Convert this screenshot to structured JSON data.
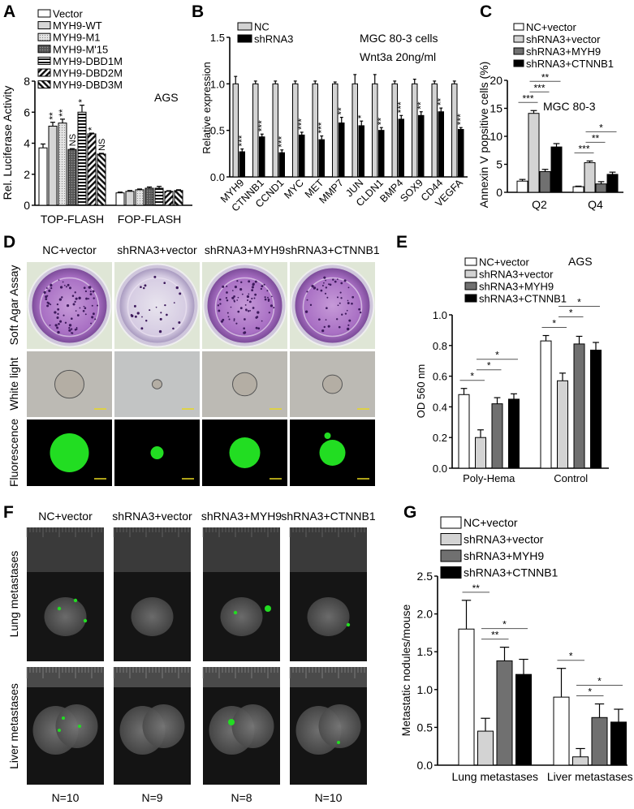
{
  "panel_letters": {
    "A": "A",
    "B": "B",
    "C": "C",
    "D": "D",
    "E": "E",
    "F": "F",
    "G": "G"
  },
  "chart_data": [
    {
      "panel": "A",
      "type": "bar",
      "categories": [
        "TOP-FLASH",
        "FOP-FLASH"
      ],
      "ylabel": "Rel. Luciferase Activity",
      "xlabel": "",
      "ylim": [
        0,
        8
      ],
      "yticks": [
        "0",
        "2",
        "4",
        "6",
        "8"
      ],
      "annotations": [
        "AGS"
      ],
      "legend": "top-left",
      "series": [
        {
          "name": "Vector",
          "fill": "#ffffff",
          "pattern": "none",
          "values": [
            3.7,
            0.8
          ],
          "errors": [
            0.25,
            0.05
          ],
          "marks": [
            "",
            ""
          ]
        },
        {
          "name": "MYH9-WT",
          "fill": "#d6d6d6",
          "pattern": "solid",
          "values": [
            5.1,
            0.9
          ],
          "errors": [
            0.25,
            0.05
          ],
          "marks": [
            "**",
            ""
          ]
        },
        {
          "name": "MYH9-M1",
          "fill": "#e0e0e0",
          "pattern": "dots",
          "values": [
            5.3,
            1.0
          ],
          "errors": [
            0.25,
            0.05
          ],
          "marks": [
            "**",
            ""
          ]
        },
        {
          "name": "MYH9-M'15",
          "fill": "#555555",
          "pattern": "dark-dots",
          "values": [
            3.6,
            1.1
          ],
          "errors": [
            0.05,
            0.08
          ],
          "marks": [
            "NS",
            ""
          ]
        },
        {
          "name": "MYH9-DBD1M",
          "fill": "#ffffff",
          "pattern": "horizontal-stripes",
          "values": [
            6.0,
            1.1
          ],
          "errors": [
            0.45,
            0.12
          ],
          "marks": [
            "*",
            ""
          ]
        },
        {
          "name": "MYH9-DBD2M",
          "fill": "#ffffff",
          "pattern": "back-diagonal",
          "values": [
            4.6,
            0.9
          ],
          "errors": [
            0.05,
            0.04
          ],
          "marks": [
            "*",
            ""
          ]
        },
        {
          "name": "MYH9-DBD3M",
          "fill": "#ffffff",
          "pattern": "forward-diagonal",
          "values": [
            3.3,
            0.95
          ],
          "errors": [
            0.05,
            0.05
          ],
          "marks": [
            "NS",
            ""
          ]
        }
      ],
      "comparisons": []
    },
    {
      "panel": "B",
      "type": "bar",
      "categories": [
        "MYH9",
        "CTNNB1",
        "CCND1",
        "MYC",
        "MET",
        "MMP7",
        "JUN",
        "CLDN1",
        "BMP4",
        "SOX9",
        "CD44",
        "VEGFA"
      ],
      "ylabel": "Relative expression",
      "xlabel": "",
      "ylim": [
        0,
        1.5
      ],
      "yticks": [
        "0.0",
        "0.5",
        "1.0",
        "1.5"
      ],
      "annotations": [
        "MGC 80-3 cells",
        "Wnt3a 20ng/ml"
      ],
      "legend": "top-left",
      "series": [
        {
          "name": "NC",
          "fill": "#d3d3d3",
          "pattern": "solid",
          "values": [
            1,
            1,
            1,
            1,
            1,
            1,
            1,
            1,
            1,
            1,
            1,
            1
          ],
          "errors": [
            0.08,
            0.03,
            0.03,
            0.03,
            0.03,
            0.02,
            0.1,
            0.1,
            0.03,
            0.05,
            0.03,
            0.03
          ],
          "marks": [
            "",
            "",
            "",
            "",
            "",
            "",
            "",
            "",
            "",
            "",
            "",
            ""
          ]
        },
        {
          "name": "shRNA3",
          "fill": "#000000",
          "pattern": "solid",
          "values": [
            0.27,
            0.43,
            0.26,
            0.45,
            0.4,
            0.58,
            0.55,
            0.5,
            0.62,
            0.66,
            0.7,
            0.51
          ],
          "errors": [
            0.03,
            0.03,
            0.03,
            0.03,
            0.04,
            0.06,
            0.05,
            0.03,
            0.04,
            0.04,
            0.04,
            0.02
          ],
          "marks": [
            "***",
            "***",
            "***",
            "***",
            "***",
            "**",
            "*",
            "**",
            "***",
            "**",
            "**",
            "***"
          ]
        }
      ],
      "comparisons": []
    },
    {
      "panel": "C",
      "type": "bar",
      "categories": [
        "Q2",
        "Q4"
      ],
      "ylabel": "Annexin V popsitive cells (%)",
      "xlabel": "",
      "ylim": [
        0,
        20
      ],
      "yticks": [
        "0",
        "5",
        "10",
        "15",
        "20"
      ],
      "annotations": [
        "MGC 80-3"
      ],
      "legend": "top",
      "series": [
        {
          "name": "NC+vector",
          "fill": "#ffffff",
          "pattern": "none",
          "values": [
            2.0,
            1.0
          ],
          "errors": [
            0.3,
            0.1
          ],
          "marks": [
            "",
            ""
          ]
        },
        {
          "name": "shRNA3+vector",
          "fill": "#d3d3d3",
          "pattern": "solid",
          "values": [
            14.1,
            5.3
          ],
          "errors": [
            0.5,
            0.3
          ],
          "marks": [
            "",
            ""
          ]
        },
        {
          "name": "shRNA3+MYH9",
          "fill": "#707070",
          "pattern": "solid",
          "values": [
            3.7,
            1.5
          ],
          "errors": [
            0.4,
            0.4
          ],
          "marks": [
            "",
            ""
          ]
        },
        {
          "name": "shRNA3+CTNNB1",
          "fill": "#000000",
          "pattern": "solid",
          "values": [
            8.1,
            3.2
          ],
          "errors": [
            0.6,
            0.4
          ],
          "marks": [
            "",
            ""
          ]
        }
      ],
      "comparisons": [
        {
          "category": 0,
          "from": 0,
          "to": 1,
          "label": "***"
        },
        {
          "category": 0,
          "from": 1,
          "to": 2,
          "label": "***"
        },
        {
          "category": 0,
          "from": 1,
          "to": 3,
          "label": "**"
        },
        {
          "category": 1,
          "from": 0,
          "to": 1,
          "label": "***"
        },
        {
          "category": 1,
          "from": 1,
          "to": 2,
          "label": "**"
        },
        {
          "category": 1,
          "from": 1,
          "to": 3,
          "label": "*"
        }
      ]
    },
    {
      "panel": "E",
      "type": "bar",
      "categories": [
        "Poly-Hema",
        "Control"
      ],
      "ylabel": "OD 560 nm",
      "xlabel": "",
      "ylim": [
        0,
        1.0
      ],
      "yticks": [
        "0.0",
        "0.2",
        "0.4",
        "0.6",
        "0.8",
        "1.0"
      ],
      "annotations": [
        "AGS"
      ],
      "legend": "top",
      "series": [
        {
          "name": "NC+vector",
          "fill": "#ffffff",
          "pattern": "none",
          "values": [
            0.48,
            0.83
          ],
          "errors": [
            0.04,
            0.035
          ],
          "marks": [
            "",
            ""
          ]
        },
        {
          "name": "shRNA3+vector",
          "fill": "#d3d3d3",
          "pattern": "solid",
          "values": [
            0.2,
            0.57
          ],
          "errors": [
            0.05,
            0.05
          ],
          "marks": [
            "",
            ""
          ]
        },
        {
          "name": "shRNA3+MYH9",
          "fill": "#707070",
          "pattern": "solid",
          "values": [
            0.42,
            0.81
          ],
          "errors": [
            0.04,
            0.05
          ],
          "marks": [
            "",
            ""
          ]
        },
        {
          "name": "shRNA3+CTNNB1",
          "fill": "#000000",
          "pattern": "solid",
          "values": [
            0.45,
            0.77
          ],
          "errors": [
            0.035,
            0.05
          ],
          "marks": [
            "",
            ""
          ]
        }
      ],
      "comparisons": [
        {
          "category": 0,
          "from": 0,
          "to": 1,
          "label": "*"
        },
        {
          "category": 0,
          "from": 1,
          "to": 2,
          "label": "*"
        },
        {
          "category": 0,
          "from": 1,
          "to": 3,
          "label": "*"
        },
        {
          "category": 1,
          "from": 0,
          "to": 1,
          "label": "*"
        },
        {
          "category": 1,
          "from": 1,
          "to": 2,
          "label": "*"
        },
        {
          "category": 1,
          "from": 1,
          "to": 3,
          "label": "*"
        }
      ]
    },
    {
      "panel": "G",
      "type": "bar",
      "categories": [
        "Lung metastases",
        "Liver metastases"
      ],
      "ylabel": "Metastatic nodules/mouse",
      "xlabel": "",
      "ylim": [
        0,
        2.5
      ],
      "yticks": [
        "0.0",
        "0.5",
        "1.0",
        "1.5",
        "2.0",
        "2.5"
      ],
      "annotations": [],
      "legend": "top",
      "series": [
        {
          "name": "NC+vector",
          "fill": "#ffffff",
          "pattern": "none",
          "values": [
            1.8,
            0.9
          ],
          "errors": [
            0.38,
            0.38
          ],
          "marks": [
            "",
            ""
          ]
        },
        {
          "name": "shRNA3+vector",
          "fill": "#d3d3d3",
          "pattern": "solid",
          "values": [
            0.45,
            0.11
          ],
          "errors": [
            0.17,
            0.11
          ],
          "marks": [
            "",
            ""
          ]
        },
        {
          "name": "shRNA3+MYH9",
          "fill": "#707070",
          "pattern": "solid",
          "values": [
            1.38,
            0.63
          ],
          "errors": [
            0.18,
            0.18
          ],
          "marks": [
            "",
            ""
          ]
        },
        {
          "name": "shRNA3+CTNNB1",
          "fill": "#000000",
          "pattern": "solid",
          "values": [
            1.2,
            0.57
          ],
          "errors": [
            0.2,
            0.17
          ],
          "marks": [
            "",
            ""
          ]
        }
      ],
      "comparisons": [
        {
          "category": 0,
          "from": 0,
          "to": 1,
          "label": "**"
        },
        {
          "category": 0,
          "from": 1,
          "to": 2,
          "label": "**"
        },
        {
          "category": 0,
          "from": 1,
          "to": 3,
          "label": "*"
        },
        {
          "category": 1,
          "from": 0,
          "to": 1,
          "label": "*"
        },
        {
          "category": 1,
          "from": 1,
          "to": 2,
          "label": "*"
        },
        {
          "category": 1,
          "from": 1,
          "to": 3,
          "label": "*"
        }
      ]
    }
  ],
  "panel_d": {
    "columns": [
      "NC+vector",
      "shRNA3+vector",
      "shRNA3+MYH9",
      "shRNA3+CTNNB1"
    ],
    "rows": [
      "Soft Agar Assay",
      "White light",
      "Fluorescence"
    ]
  },
  "panel_f": {
    "columns": [
      "NC+vector",
      "shRNA3+vector",
      "shRNA3+MYH9",
      "shRNA3+CTNNB1"
    ],
    "rows": [
      "Lung metastases",
      "Liver metastases"
    ],
    "n_labels": [
      "N=10",
      "N=9",
      "N=8",
      "N=10"
    ]
  },
  "colors": {
    "purple_stain": "#9a5fb8",
    "gfp_green": "#22dd22",
    "scale_bar": "#e8d820"
  }
}
